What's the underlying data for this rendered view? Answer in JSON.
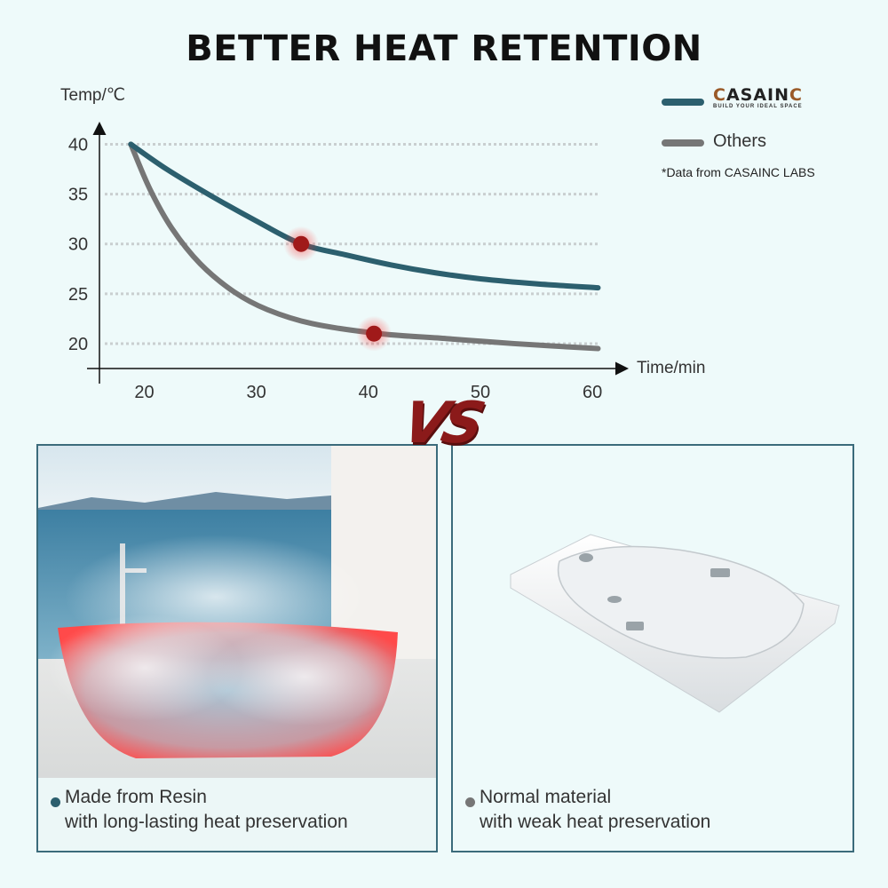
{
  "title": "BETTER HEAT RETENTION",
  "legend": {
    "brand_name": "ASAIN",
    "brand_tagline": "BUILD YOUR IDEAL SPACE",
    "others_label": "Others",
    "brand_color": "#2c5f6e",
    "others_color": "#767676"
  },
  "note": "*Data from CASAINC LABS",
  "vs_text": "VS",
  "chart_data": {
    "type": "line",
    "xlabel": "Time/min",
    "ylabel": "Temp/℃",
    "x_ticks": [
      20,
      30,
      40,
      50,
      60
    ],
    "y_ticks": [
      20,
      25,
      30,
      35,
      40
    ],
    "xlim": [
      16,
      63
    ],
    "ylim": [
      17.5,
      42
    ],
    "grid": "horizontal dotted",
    "series": [
      {
        "name": "CASAINC",
        "color": "#2c5f6e",
        "points": [
          [
            18.8,
            40
          ],
          [
            22,
            37.5
          ],
          [
            26,
            34.8
          ],
          [
            30,
            32.3
          ],
          [
            34,
            30
          ],
          [
            38,
            28.9
          ],
          [
            42,
            27.9
          ],
          [
            46,
            27.1
          ],
          [
            50,
            26.5
          ],
          [
            55,
            26
          ],
          [
            60.5,
            25.6
          ]
        ],
        "highlight": [
          34,
          30
        ]
      },
      {
        "name": "Others",
        "color": "#767676",
        "points": [
          [
            18.8,
            40
          ],
          [
            20.5,
            35.5
          ],
          [
            22.5,
            31.5
          ],
          [
            25,
            28
          ],
          [
            28,
            25.2
          ],
          [
            31,
            23.4
          ],
          [
            35,
            22
          ],
          [
            41,
            21
          ],
          [
            47,
            20.5
          ],
          [
            53,
            20
          ],
          [
            60.5,
            19.5
          ]
        ],
        "highlight": [
          40.5,
          21
        ]
      }
    ],
    "highlight_color": "#a01a1a"
  },
  "panels": {
    "left": {
      "line1": "Made from Resin",
      "line2": "with long-lasting heat preservation",
      "bullet_color": "#2c5f6e"
    },
    "right": {
      "line1": "Normal material",
      "line2": "with weak heat preservation",
      "bullet_color": "#767676"
    }
  }
}
